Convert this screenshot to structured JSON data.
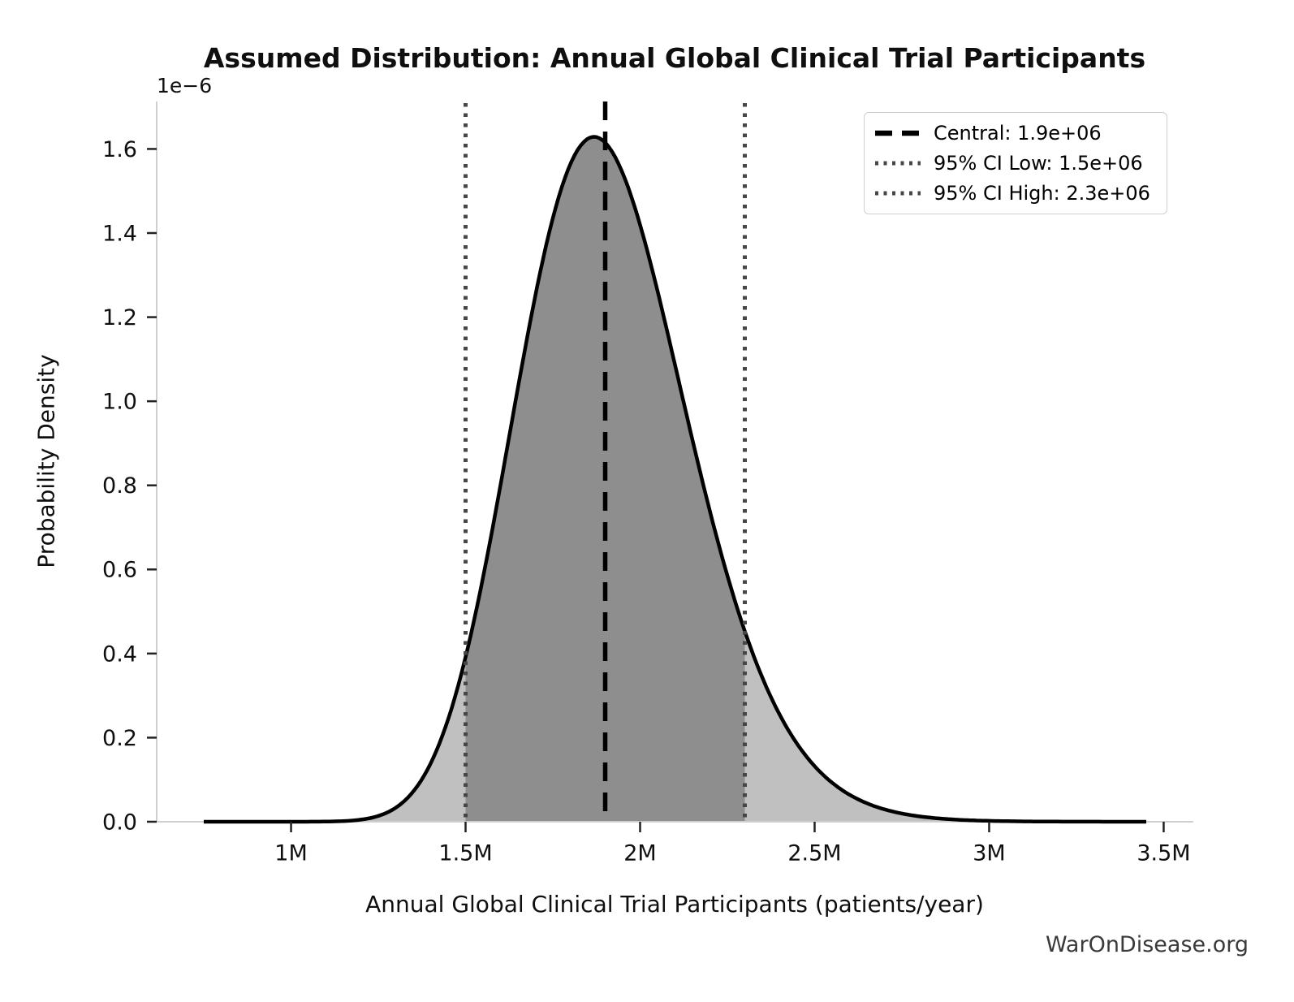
{
  "chart_data": {
    "type": "area",
    "title": "Assumed Distribution: Annual Global Clinical Trial Participants",
    "xlabel": "Annual Global Clinical Trial Participants (patients/year)",
    "ylabel": "Probability Density",
    "y_scale_label": "1e−6",
    "watermark": "WarOnDisease.org",
    "xlim": [
      615000,
      3585000
    ],
    "ylim_e6": [
      0,
      1.709
    ],
    "x_ticks": [
      {
        "value": 1000000,
        "label": "1M"
      },
      {
        "value": 1500000,
        "label": "1.5M"
      },
      {
        "value": 2000000,
        "label": "2M"
      },
      {
        "value": 2500000,
        "label": "2.5M"
      },
      {
        "value": 3000000,
        "label": "3M"
      },
      {
        "value": 3500000,
        "label": "3.5M"
      }
    ],
    "y_ticks": [
      {
        "value_e6": 0.0,
        "label": "0.0"
      },
      {
        "value_e6": 0.2,
        "label": "0.2"
      },
      {
        "value_e6": 0.4,
        "label": "0.4"
      },
      {
        "value_e6": 0.6,
        "label": "0.6"
      },
      {
        "value_e6": 0.8,
        "label": "0.8"
      },
      {
        "value_e6": 1.0,
        "label": "1.0"
      },
      {
        "value_e6": 1.2,
        "label": "1.2"
      },
      {
        "value_e6": 1.4,
        "label": "1.4"
      },
      {
        "value_e6": 1.6,
        "label": "1.6"
      }
    ],
    "curve": {
      "family": "lognormal",
      "median": 1900000,
      "sigma_log": 0.13,
      "x_start": 750000,
      "x_end": 3450000,
      "peak_density_e6": 1.63
    },
    "central": 1900000,
    "ci_low": 1500000,
    "ci_high": 2300000,
    "legend": [
      {
        "label": "Central: 1.9e+06",
        "style": "dashed",
        "color": "#000000"
      },
      {
        "label": "95% CI Low: 1.5e+06",
        "style": "dotted",
        "color": "#464646"
      },
      {
        "label": "95% CI High: 2.3e+06",
        "style": "dotted",
        "color": "#464646"
      }
    ],
    "colors": {
      "curve": "#000000",
      "fill_tails": "#c0c0c0",
      "fill_ci": "#8e8e8e",
      "central_line": "#000000",
      "ci_line": "#464646",
      "spine": "#cfcfcf",
      "tick": "#222222",
      "tick_label": "#0f0f0f"
    },
    "grid": false,
    "legend_position": "upper right"
  }
}
